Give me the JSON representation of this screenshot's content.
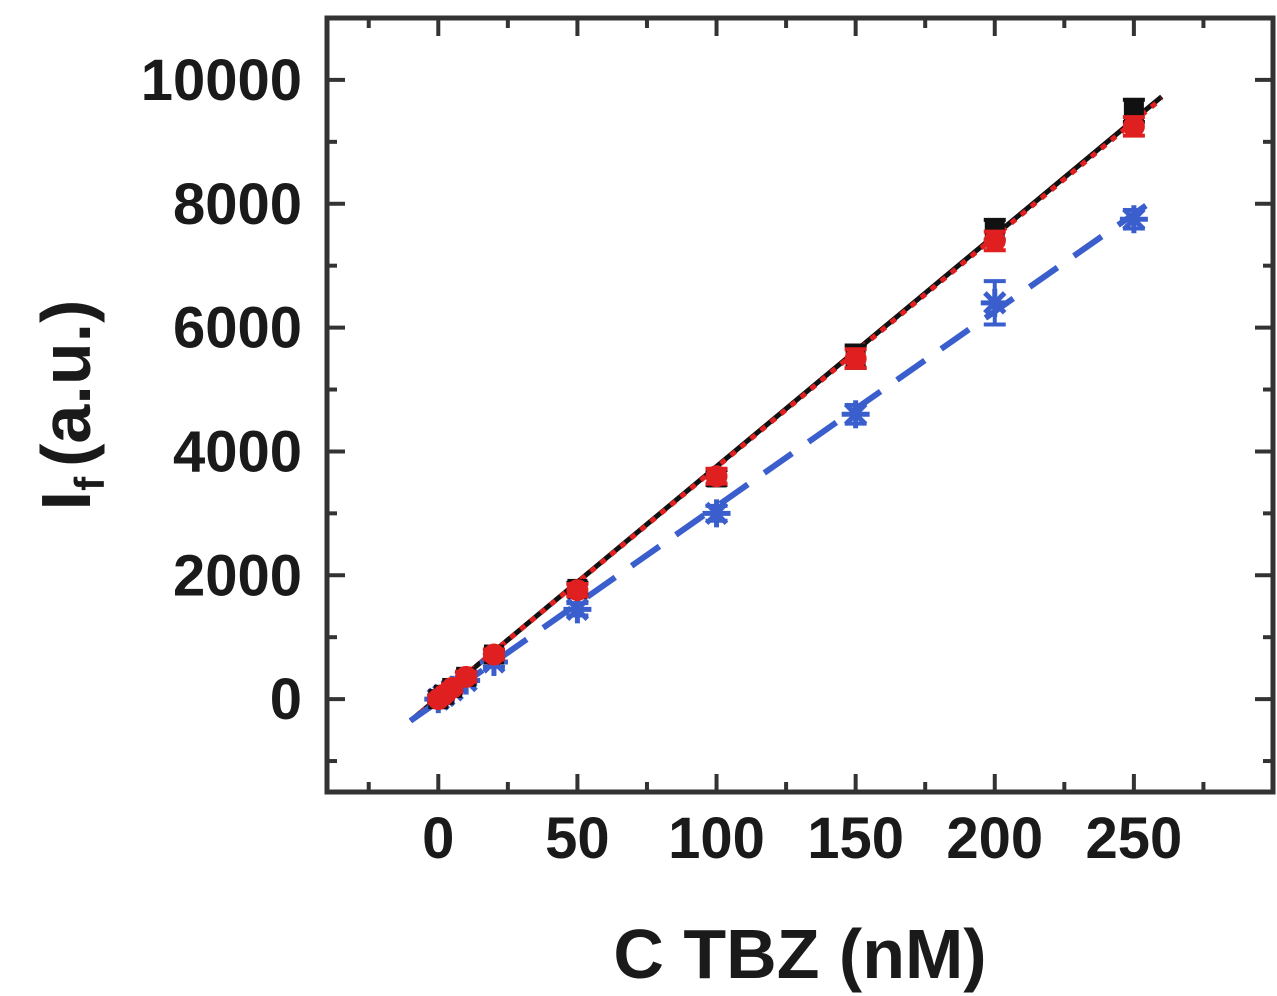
{
  "chart_data": {
    "type": "scatter",
    "title": "",
    "xlabel": "C TBZ (nM)",
    "ylabel": {
      "main": "I",
      "sub": "f",
      "rest": "(a.u.)"
    },
    "xlim": [
      -40,
      300
    ],
    "ylim": [
      -1500,
      11000
    ],
    "xticks": [
      0,
      50,
      100,
      150,
      200,
      250
    ],
    "yticks": [
      0,
      2000,
      4000,
      6000,
      8000,
      10000
    ],
    "grid": false,
    "series": [
      {
        "color": "#111111",
        "marker": "square",
        "line": "solid",
        "x": [
          0,
          2,
          5,
          10,
          20,
          50,
          100,
          150,
          200,
          250
        ],
        "y": [
          0,
          70,
          180,
          360,
          720,
          1780,
          3580,
          5530,
          7580,
          9500
        ],
        "err": [
          60,
          60,
          60,
          80,
          80,
          100,
          120,
          180,
          160,
          180
        ],
        "fit": [
          -10,
          260,
          -350,
          9730
        ]
      },
      {
        "color": "#e02020",
        "marker": "circle",
        "line": "dotted",
        "x": [
          0,
          2,
          5,
          10,
          20,
          50,
          100,
          150,
          200,
          250
        ],
        "y": [
          0,
          70,
          180,
          360,
          720,
          1760,
          3600,
          5500,
          7400,
          9250
        ],
        "err": [
          60,
          60,
          60,
          80,
          80,
          100,
          120,
          150,
          150,
          150
        ],
        "fit": [
          -10,
          260,
          -350,
          9700
        ]
      },
      {
        "color": "#3a5fcd",
        "marker": "star",
        "line": "dashed",
        "x": [
          0,
          2,
          5,
          10,
          20,
          50,
          100,
          150,
          200,
          250
        ],
        "y": [
          0,
          60,
          150,
          300,
          600,
          1450,
          3000,
          4600,
          6400,
          7750
        ],
        "err": [
          50,
          50,
          50,
          60,
          80,
          100,
          120,
          150,
          350,
          150
        ],
        "fit": [
          -10,
          260,
          -350,
          8150
        ]
      }
    ]
  }
}
